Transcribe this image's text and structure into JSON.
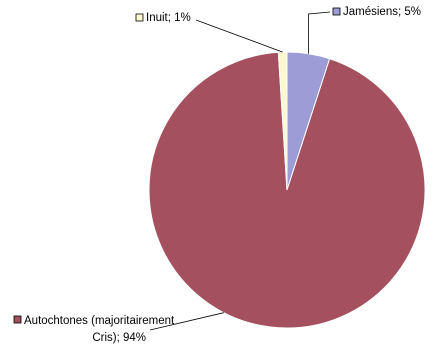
{
  "chart_data": {
    "type": "pie",
    "slices": [
      {
        "label": "Jamésiens",
        "value": 5,
        "display": "Jamésiens; 5%",
        "color": "#9c9cd6"
      },
      {
        "label": "Autochtones (majoritairement Cris)",
        "value": 94,
        "display_lines": [
          "Autochtones (majoritairement",
          "Cris); 94%"
        ],
        "color": "#a5505f"
      },
      {
        "label": "Inuit",
        "value": 1,
        "display": "Inuit; 1%",
        "color": "#fcf8cf"
      }
    ]
  }
}
